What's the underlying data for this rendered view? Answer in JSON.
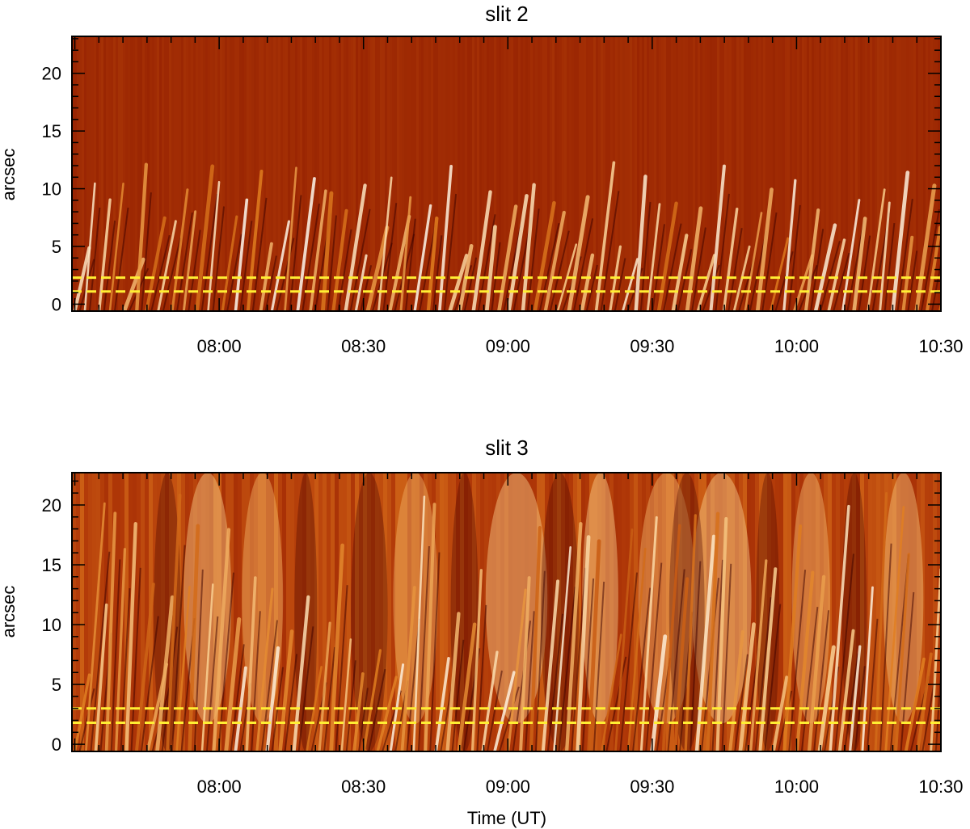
{
  "chart_data": [
    {
      "type": "heatmap",
      "title": "slit 2",
      "xlabel": "",
      "ylabel": "arcsec",
      "x_ticks": [
        "08:00",
        "08:30",
        "09:00",
        "09:30",
        "10:00",
        "10:30"
      ],
      "x_tick_hours": [
        8.0,
        8.5,
        9.0,
        9.5,
        10.0,
        10.5
      ],
      "xlim_hours": [
        7.49,
        10.5
      ],
      "y_ticks": [
        "0",
        "5",
        "10",
        "15",
        "20"
      ],
      "y_tick_values": [
        0,
        5,
        10,
        15,
        20
      ],
      "ylim": [
        -0.6,
        23.2
      ],
      "dashed_lines_y": [
        1.1,
        2.3
      ],
      "dashed_line_color": "#ffee33",
      "colormap": [
        "#3a0000",
        "#8f1a00",
        "#b03a08",
        "#e07d1f",
        "#fbd090",
        "#ffffff"
      ],
      "pattern": "inclined bright narrow streaks concentrated at low heights (0-8 arcsec), repeating roughly every 2-3 minutes"
    },
    {
      "type": "heatmap",
      "title": "slit 3",
      "xlabel": "Time (UT)",
      "ylabel": "arcsec",
      "x_ticks": [
        "08:00",
        "08:30",
        "09:00",
        "09:30",
        "10:00",
        "10:30"
      ],
      "x_tick_hours": [
        8.0,
        8.5,
        9.0,
        9.5,
        10.0,
        10.5
      ],
      "xlim_hours": [
        7.49,
        10.5
      ],
      "y_ticks": [
        "0",
        "5",
        "10",
        "15",
        "20"
      ],
      "y_tick_values": [
        0,
        5,
        10,
        15,
        20
      ],
      "ylim": [
        -0.6,
        22.7
      ],
      "dashed_lines_y": [
        1.8,
        3.0
      ],
      "dashed_line_color": "#ffee33",
      "colormap": [
        "#3a0000",
        "#8f1a00",
        "#b03a08",
        "#e07d1f",
        "#fbd090",
        "#ffffff"
      ],
      "pattern": "inclined bright streaks spanning full height with broad brightenings near 07:57, 08:40, 09:02, 09:20, 09:45, 10:05, 10:22"
    }
  ]
}
